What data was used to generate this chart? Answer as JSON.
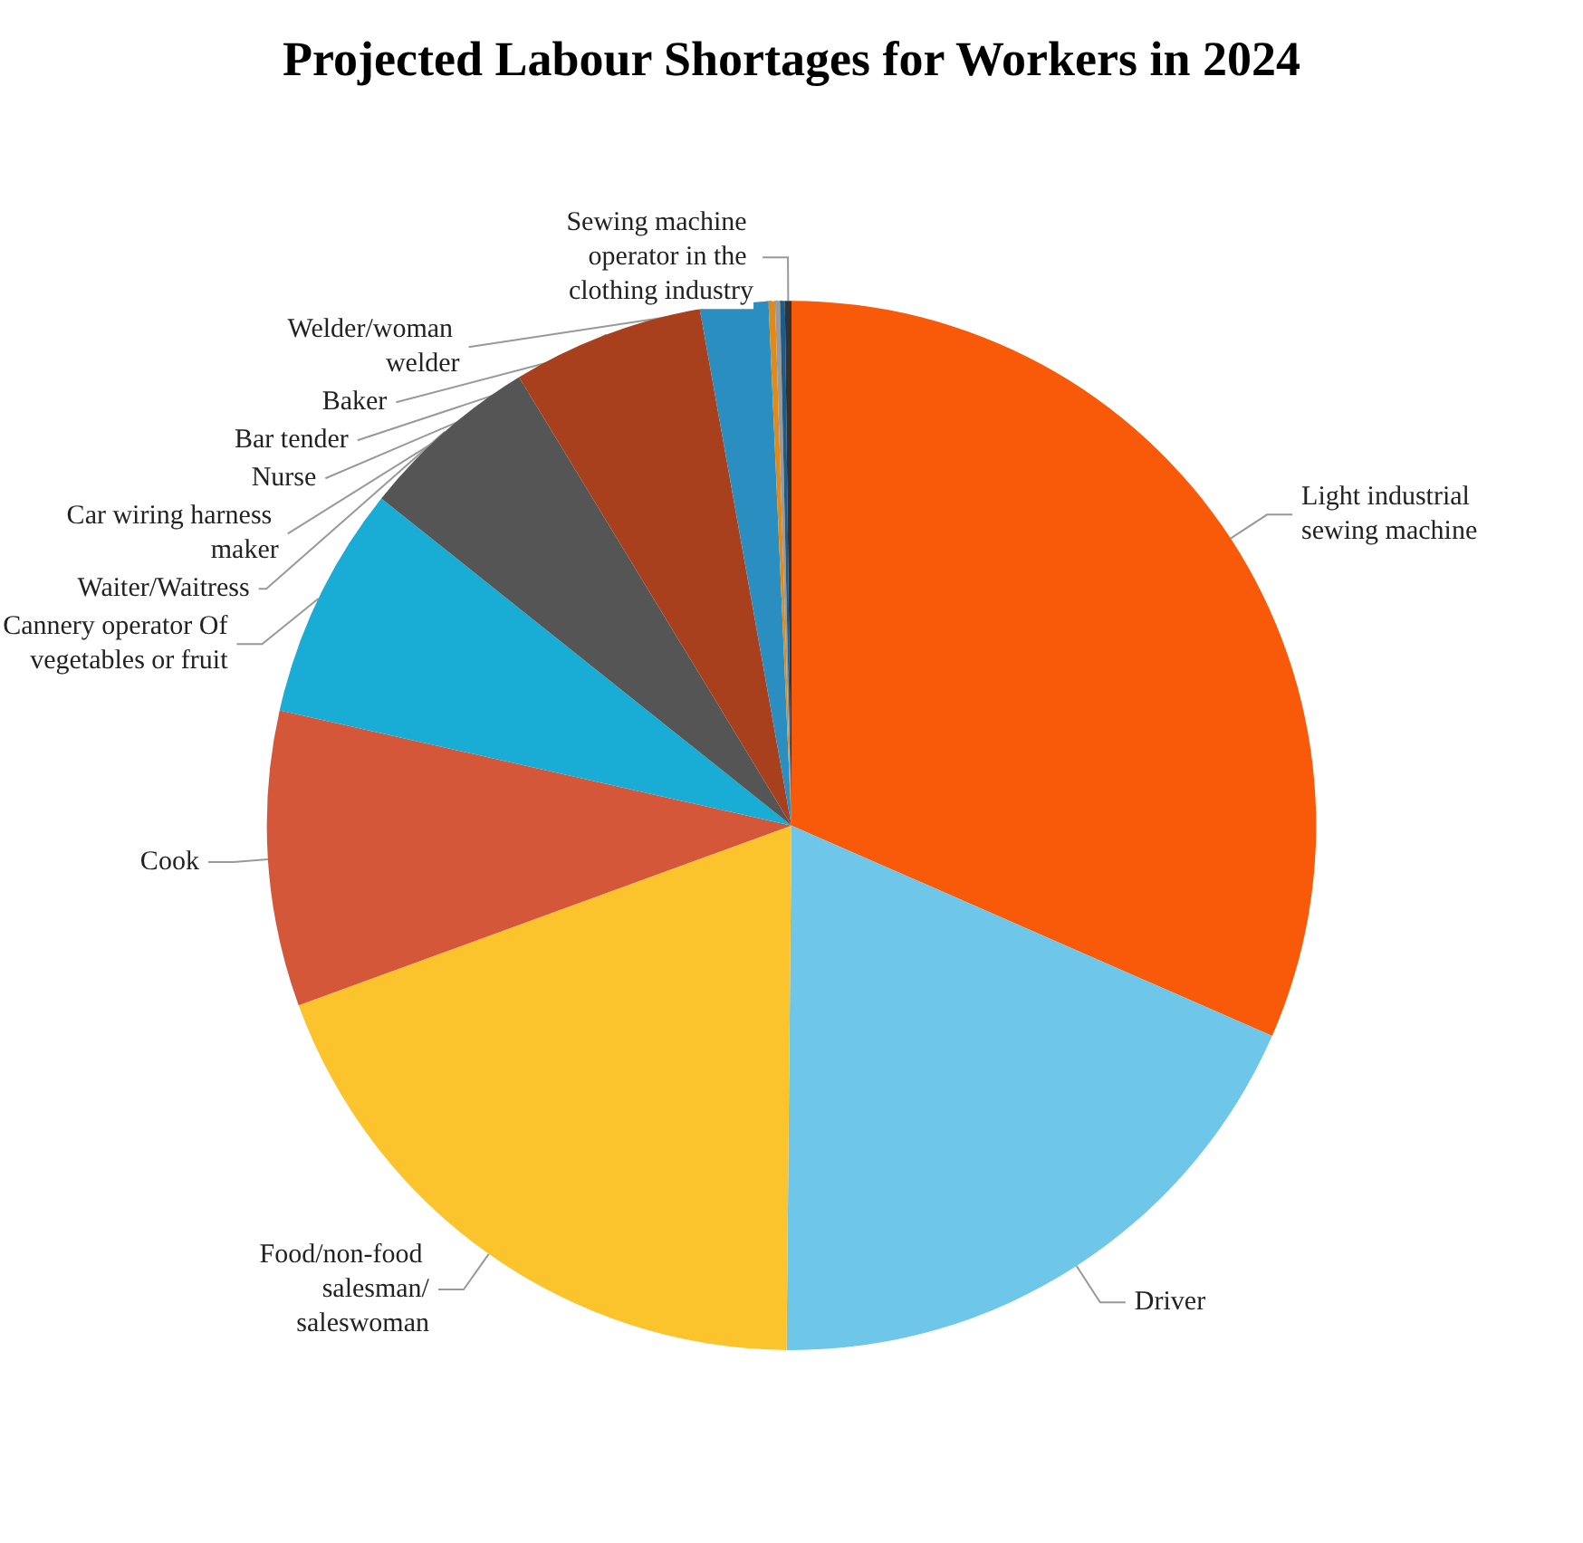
{
  "chart_data": {
    "type": "pie",
    "title": "Projected Labour Shortages for Workers in 2024",
    "categories": [
      "Light industrial sewing machine",
      "Driver",
      "Food/non-food salesman/saleswoman",
      "Cook",
      "Cannery operator Of vegetables or fruit",
      "Waiter/Waitress",
      "Car wiring harness maker",
      "Nurse",
      "Welder/woman welder",
      "Bar tender",
      "Baker",
      "Sewing machine operator in the clothing industry"
    ],
    "values": [
      31.6,
      18.6,
      19.3,
      9.1,
      7.2,
      5.6,
      5.9,
      2.1,
      0.2,
      0.15,
      0.15,
      0.2
    ],
    "colors": [
      "#f95a0a",
      "#6ec6e8",
      "#fcc42c",
      "#d4573a",
      "#19acd4",
      "#555555",
      "#a8401e",
      "#2a8fc0",
      "#e08a1a",
      "#9a9a9a",
      "#1e5a8a",
      "#333333"
    ]
  }
}
